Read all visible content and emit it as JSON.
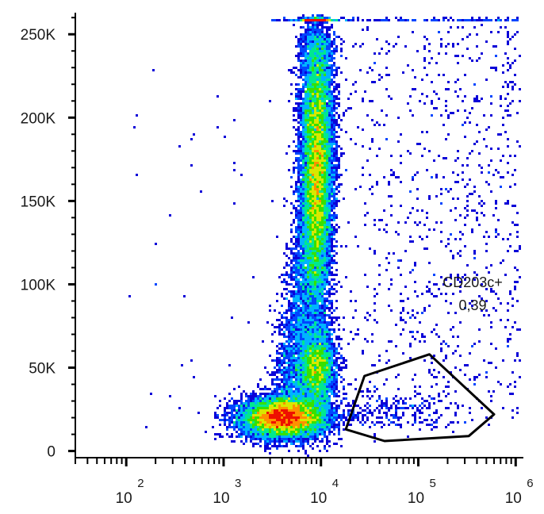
{
  "chart_data": {
    "type": "scatter",
    "plot_style": "flow cytometry pseudocolor density plot",
    "x_axis": {
      "scale": "logarithmic",
      "ticks": [
        {
          "value": 100,
          "base": "10",
          "exp": "2"
        },
        {
          "value": 1000,
          "base": "10",
          "exp": "3"
        },
        {
          "value": 10000,
          "base": "10",
          "exp": "4"
        },
        {
          "value": 100000,
          "base": "10",
          "exp": "5"
        },
        {
          "value": 1000000,
          "base": "10",
          "exp": "6"
        }
      ],
      "range": [
        30,
        1200000
      ]
    },
    "y_axis": {
      "scale": "linear",
      "ticks": [
        {
          "value": 0,
          "label": "0"
        },
        {
          "value": 50000,
          "label": "50K"
        },
        {
          "value": 100000,
          "label": "100K"
        },
        {
          "value": 150000,
          "label": "150K"
        },
        {
          "value": 200000,
          "label": "200K"
        },
        {
          "value": 250000,
          "label": "250K"
        }
      ],
      "range": [
        -4000,
        262000
      ]
    },
    "populations": [
      {
        "center_x": 4200,
        "center_y": 20000,
        "spread_x_decades": 0.22,
        "spread_y": 6000,
        "density": "peak"
      },
      {
        "center_x": 9000,
        "center_y": 165000,
        "spread_x_decades": 0.08,
        "spread_y": 45000,
        "density": "high"
      },
      {
        "center_x": 9000,
        "center_y": 50000,
        "spread_x_decades": 0.1,
        "spread_y": 12000,
        "density": "medium"
      },
      {
        "center_x": 60000,
        "center_y": 25000,
        "spread_x_decades": 0.28,
        "spread_y": 8000,
        "density": "low"
      }
    ],
    "gate": {
      "name": "CD203c+",
      "value": "0,39",
      "vertices": [
        [
          18000,
          13000
        ],
        [
          28000,
          45000
        ],
        [
          130000,
          58000
        ],
        [
          600000,
          22000
        ],
        [
          330000,
          9000
        ],
        [
          45000,
          6000
        ]
      ]
    },
    "density_colors": [
      "#0a00d8",
      "#0046ff",
      "#00b4ff",
      "#00e890",
      "#36e000",
      "#d8e800",
      "#ff9000",
      "#ee1000"
    ]
  }
}
